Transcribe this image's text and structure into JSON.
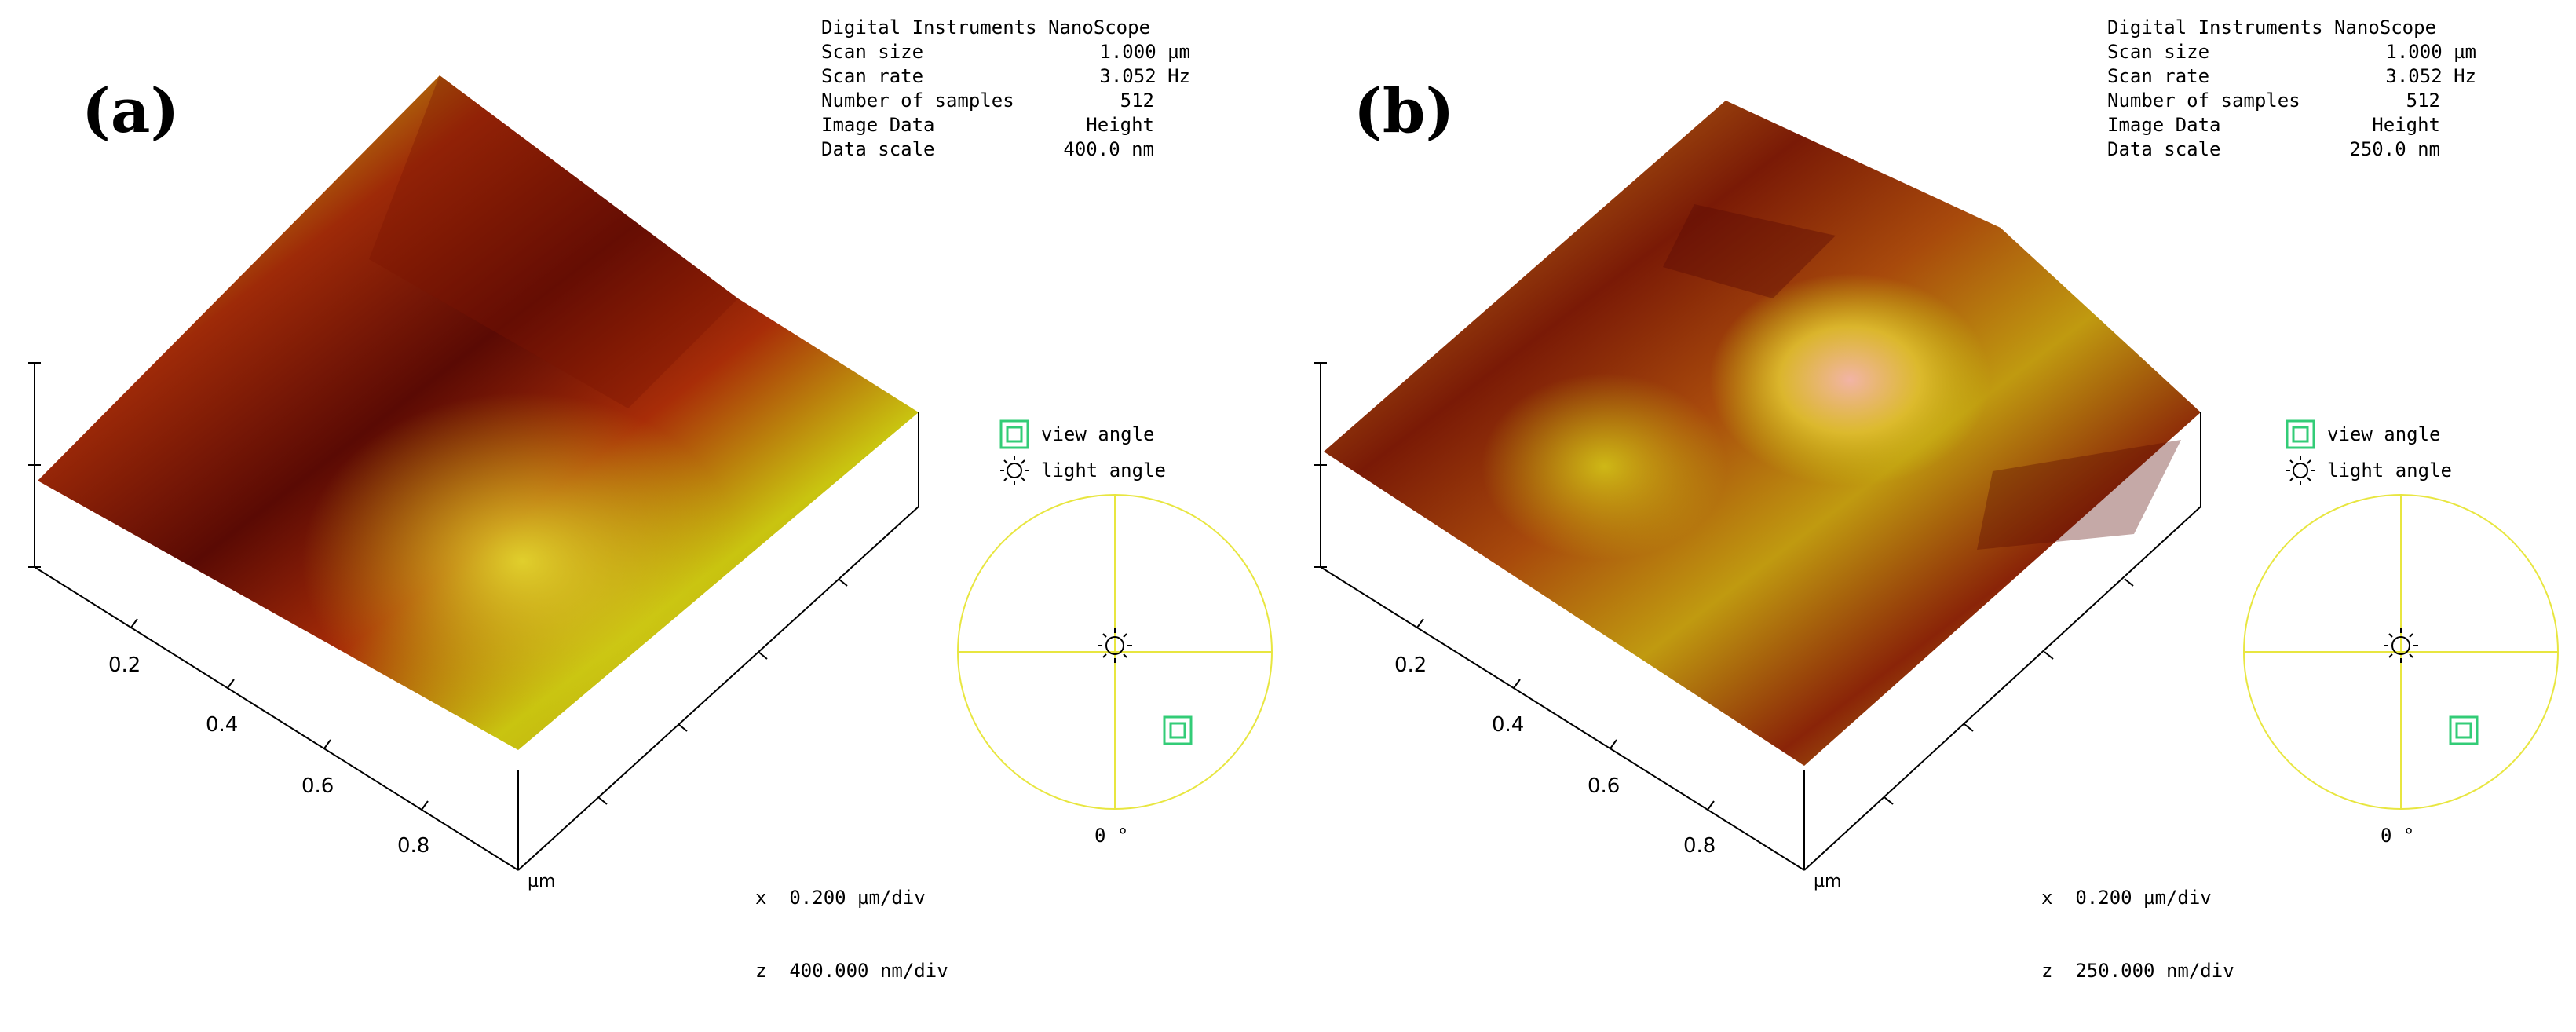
{
  "panels": [
    {
      "letter": "(a)",
      "info": {
        "header": "Digital Instruments NanoScope",
        "rows": [
          {
            "k": "Scan size",
            "v": "1.000 µm"
          },
          {
            "k": "Scan rate",
            "v": "3.052 Hz"
          },
          {
            "k": "Number of samples",
            "v": "512"
          },
          {
            "k": "Image Data",
            "v": "Height"
          },
          {
            "k": "Data scale",
            "v": "400.0 nm"
          }
        ]
      },
      "ticks": [
        "0.2",
        "0.4",
        "0.6",
        "0.8"
      ],
      "unit": "µm",
      "legend": {
        "view": "view angle",
        "light": "light angle"
      },
      "angle": "0 °",
      "scale_x": "x  0.200 µm/div",
      "scale_z": "z  400.000 nm/div"
    },
    {
      "letter": "(b)",
      "info": {
        "header": "Digital Instruments NanoScope",
        "rows": [
          {
            "k": "Scan size",
            "v": "1.000 µm"
          },
          {
            "k": "Scan rate",
            "v": "3.052 Hz"
          },
          {
            "k": "Number of samples",
            "v": "512"
          },
          {
            "k": "Image Data",
            "v": "Height"
          },
          {
            "k": "Data scale",
            "v": "250.0 nm"
          }
        ]
      },
      "ticks": [
        "0.2",
        "0.4",
        "0.6",
        "0.8"
      ],
      "unit": "µm",
      "legend": {
        "view": "view angle",
        "light": "light angle"
      },
      "angle": "0 °",
      "scale_x": "x  0.200 µm/div",
      "scale_z": "z  250.000 nm/div"
    }
  ],
  "colors": {
    "dark": "#5a0a04",
    "mid": "#9e2a08",
    "bright": "#c9c410",
    "peak": "#f2b4a6",
    "view_marker": "#33cc77",
    "dial": "#e8e640"
  }
}
